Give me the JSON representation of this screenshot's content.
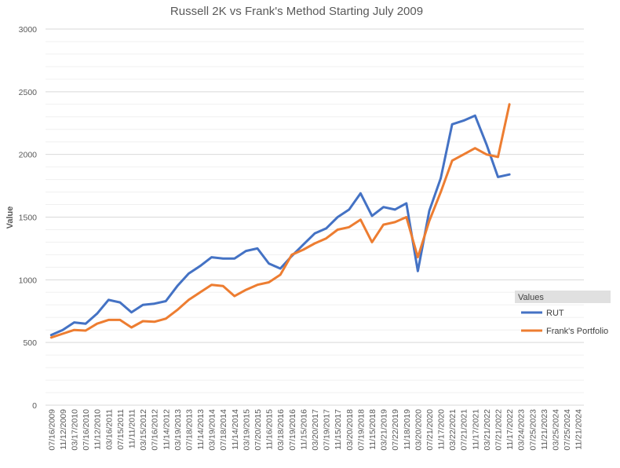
{
  "chart_data": {
    "type": "line",
    "title": "Russell 2K vs Frank's Method Starting July 2009",
    "ylabel": "Value",
    "xlabel": "",
    "ylim": [
      0,
      3000
    ],
    "yticks": [
      0,
      500,
      1000,
      1500,
      2000,
      2500,
      3000
    ],
    "grid": true,
    "legend": {
      "title": "Values",
      "placement": "right"
    },
    "categories": [
      "07/16/2009",
      "11/12/2009",
      "03/17/2010",
      "07/16/2010",
      "11/12/2010",
      "03/16/2011",
      "07/15/2011",
      "11/11/2011",
      "03/15/2012",
      "07/16/2012",
      "11/14/2012",
      "03/19/2013",
      "07/18/2013",
      "11/14/2013",
      "03/19/2014",
      "07/18/2014",
      "11/14/2014",
      "03/19/2015",
      "07/20/2015",
      "11/16/2015",
      "03/18/2016",
      "07/19/2016",
      "11/15/2016",
      "03/20/2017",
      "07/19/2017",
      "11/15/2017",
      "03/20/2018",
      "07/19/2018",
      "11/15/2018",
      "03/21/2019",
      "07/22/2019",
      "11/18/2019",
      "03/20/2020",
      "07/21/2020",
      "11/17/2020",
      "03/22/2021",
      "07/21/2021",
      "11/17/2021",
      "03/21/2022",
      "07/21/2022",
      "11/17/2022",
      "03/24/2023",
      "07/25/2023",
      "11/21/2023",
      "03/25/2024",
      "07/25/2024",
      "11/21/2024"
    ],
    "series": [
      {
        "name": "RUT",
        "color": "#4472c4",
        "values": [
          560,
          600,
          660,
          650,
          730,
          840,
          820,
          740,
          800,
          810,
          830,
          950,
          1050,
          1110,
          1180,
          1170,
          1170,
          1230,
          1250,
          1130,
          1090,
          1190,
          1280,
          1370,
          1410,
          1500,
          1560,
          1690,
          1510,
          1580,
          1560,
          1610,
          1070,
          1550,
          1810,
          2240,
          2270,
          2310,
          2080,
          1820,
          1840,
          null,
          null,
          null,
          null,
          null,
          null
        ]
      },
      {
        "name": "Frank's Portfolio",
        "color": "#ed7d31",
        "values": [
          540,
          570,
          600,
          595,
          650,
          680,
          680,
          620,
          670,
          665,
          690,
          760,
          840,
          900,
          960,
          950,
          870,
          920,
          960,
          980,
          1040,
          1200,
          1240,
          1290,
          1330,
          1400,
          1420,
          1480,
          1300,
          1440,
          1460,
          1500,
          1180,
          1470,
          1700,
          1950,
          2000,
          2050,
          2000,
          1980,
          2400,
          null,
          null,
          null,
          null,
          null,
          null
        ]
      }
    ]
  }
}
